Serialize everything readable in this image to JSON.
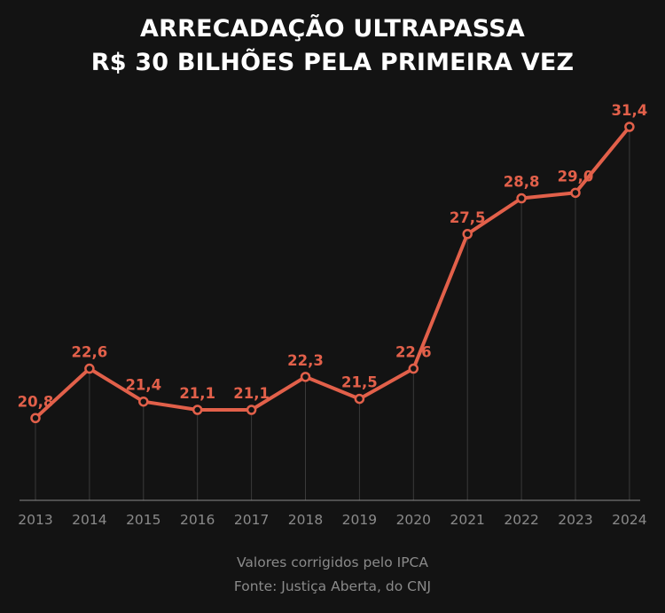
{
  "title_line1": "ARRECADAÇÃO ULTRAPASSA",
  "title_line2": "R$ 30 BILHÕES PELA PRIMEIRA VEZ",
  "note": "Valores corrigidos pelo IPCA",
  "source": "Fonte: Justiça Aberta, do CNJ",
  "colors": {
    "background": "#131313",
    "line": "#e2604a",
    "label": "#e2604a",
    "axis": "#8a8a8a",
    "gridline": "#3a3a3a"
  },
  "chart_data": {
    "type": "line",
    "x": [
      "2013",
      "2014",
      "2015",
      "2016",
      "2017",
      "2018",
      "2019",
      "2020",
      "2021",
      "2022",
      "2023",
      "2024"
    ],
    "values": [
      20.8,
      22.6,
      21.4,
      21.1,
      21.1,
      22.3,
      21.5,
      22.6,
      27.5,
      28.8,
      29.0,
      31.4
    ],
    "labels": [
      "20,8",
      "22,6",
      "21,4",
      "21,1",
      "21,1",
      "22,3",
      "21,5",
      "22,6",
      "27,5",
      "28,8",
      "29,0",
      "31,4"
    ],
    "grid": false,
    "legend": "none"
  }
}
